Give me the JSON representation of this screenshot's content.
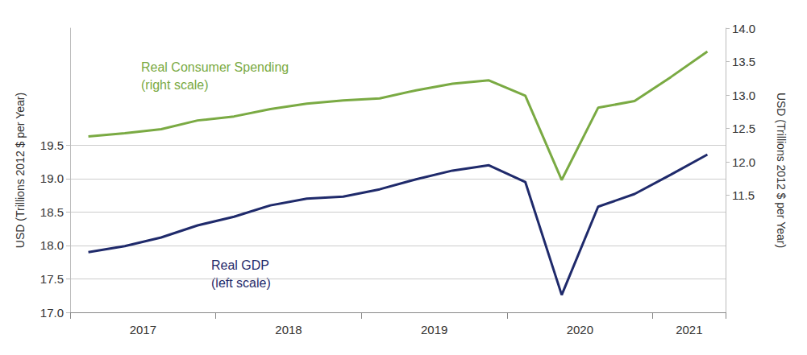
{
  "chart_data": {
    "type": "line",
    "categories": [
      null,
      "2017",
      null,
      null,
      null,
      "2018",
      null,
      null,
      null,
      "2019",
      null,
      null,
      null,
      "2020",
      null,
      null,
      "2021",
      null
    ],
    "series": [
      {
        "name": "Real Consumer Spending (right scale)",
        "color": "#7aaa43",
        "axis": "y2",
        "values": [
          12.38,
          12.43,
          12.49,
          12.62,
          12.68,
          12.79,
          12.87,
          12.92,
          12.95,
          13.07,
          13.17,
          13.22,
          12.99,
          11.73,
          12.81,
          12.91,
          13.27,
          13.65
        ]
      },
      {
        "name": "Real GDP (left scale)",
        "color": "#1f2a6b",
        "axis": "y",
        "values": [
          17.9,
          17.99,
          18.12,
          18.3,
          18.43,
          18.6,
          18.7,
          18.73,
          18.84,
          18.99,
          19.12,
          19.2,
          18.95,
          17.26,
          18.58,
          18.77,
          19.06,
          19.36
        ]
      }
    ],
    "ylabel": "USD (Trillions 2012 $ per Year)",
    "y2label": "USD (Trillions 2012 $ per Year)",
    "ylim": [
      17.0,
      21.25
    ],
    "yticks": [
      {
        "value": 17,
        "label": "17.0"
      },
      17.5,
      {
        "value": 18,
        "label": "18.0"
      },
      18.5,
      {
        "value": 19,
        "label": "19.0"
      },
      19.5
    ],
    "y2lim": [
      9.75,
      14.0
    ],
    "y2ticks": [
      11.5,
      {
        "value": 12,
        "label": "12.0"
      },
      12.5,
      {
        "value": 13,
        "label": "13.0"
      },
      13.5,
      {
        "value": 14,
        "label": "14.0"
      }
    ],
    "grid": true
  }
}
